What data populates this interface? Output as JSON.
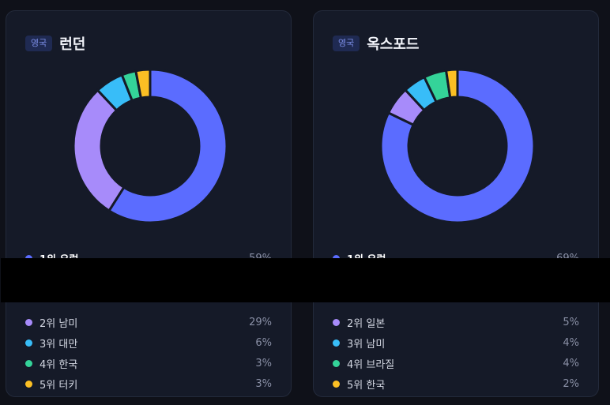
{
  "cards": [
    {
      "badge": "영국",
      "title": "런던",
      "legend": [
        {
          "label": "1위 유럽",
          "value": "59%"
        },
        {
          "label": "2위 남미",
          "value": "29%"
        },
        {
          "label": "3위 대만",
          "value": "6%"
        },
        {
          "label": "4위 한국",
          "value": "3%"
        },
        {
          "label": "5위 터키",
          "value": "3%"
        }
      ]
    },
    {
      "badge": "영국",
      "title": "옥스포드",
      "legend": [
        {
          "label": "1위 유럽",
          "value": "69%"
        },
        {
          "label": "2위 일본",
          "value": "5%"
        },
        {
          "label": "3위 남미",
          "value": "4%"
        },
        {
          "label": "4위 브라질",
          "value": "4%"
        },
        {
          "label": "5위 한국",
          "value": "2%"
        }
      ]
    }
  ],
  "chart_data": [
    {
      "type": "pie",
      "title": "런던",
      "categories": [
        "1위 유럽",
        "2위 남미",
        "3위 대만",
        "4위 한국",
        "5위 터키"
      ],
      "values": [
        59,
        29,
        6,
        3,
        3
      ],
      "colors": [
        "#5b6cff",
        "#a78bfa",
        "#38bdf8",
        "#34d399",
        "#fbbf24"
      ]
    },
    {
      "type": "pie",
      "title": "옥스포드",
      "categories": [
        "1위 유럽",
        "2위 일본",
        "3위 남미",
        "4위 브라질",
        "5위 한국"
      ],
      "values": [
        69,
        5,
        4,
        4,
        2
      ],
      "colors": [
        "#5b6cff",
        "#a78bfa",
        "#38bdf8",
        "#34d399",
        "#fbbf24"
      ]
    }
  ]
}
